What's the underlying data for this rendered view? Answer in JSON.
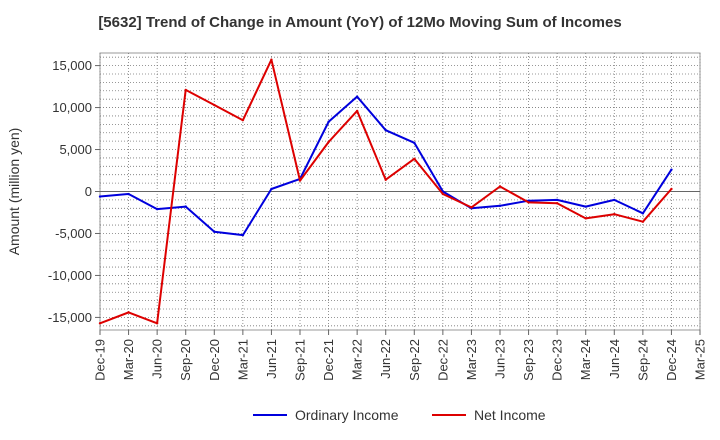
{
  "chart_data": {
    "type": "line",
    "title": "[5632]  Trend of Change in Amount (YoY) of 12Mo Moving Sum of Incomes",
    "xlabel": "",
    "ylabel": "Amount (million yen)",
    "categories": [
      "Dec-19",
      "Mar-20",
      "Jun-20",
      "Sep-20",
      "Dec-20",
      "Mar-21",
      "Jun-21",
      "Sep-21",
      "Dec-21",
      "Mar-22",
      "Jun-22",
      "Sep-22",
      "Dec-22",
      "Mar-23",
      "Jun-23",
      "Sep-23",
      "Dec-23",
      "Mar-24",
      "Jun-24",
      "Sep-24",
      "Dec-24",
      "Mar-25"
    ],
    "ylim": [
      -16500,
      16500
    ],
    "yticks": [
      -15000,
      -10000,
      -5000,
      0,
      5000,
      10000,
      15000
    ],
    "ytick_labels": [
      "-15,000",
      "-10,000",
      "-5,000",
      "0",
      "5,000",
      "10,000",
      "15,000"
    ],
    "grid": true,
    "legend_position": "bottom-center",
    "series": [
      {
        "name": "Ordinary Income",
        "color": "#0000dd",
        "values": [
          -600,
          -300,
          -2100,
          -1800,
          -4800,
          -5200,
          300,
          1500,
          8300,
          11300,
          7300,
          5800,
          0,
          -2000,
          -1700,
          -1100,
          -1000,
          -1800,
          -1000,
          -2600,
          2600,
          null
        ]
      },
      {
        "name": "Net Income",
        "color": "#dd0000",
        "values": [
          -15700,
          -14400,
          -15700,
          12100,
          10300,
          8500,
          15700,
          1300,
          5900,
          9600,
          1400,
          3900,
          -300,
          -1900,
          600,
          -1300,
          -1400,
          -3200,
          -2700,
          -3600,
          300,
          null
        ]
      }
    ]
  }
}
